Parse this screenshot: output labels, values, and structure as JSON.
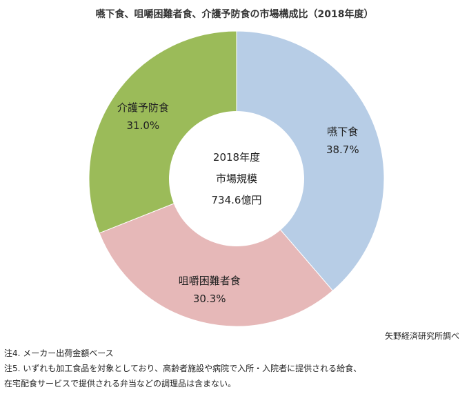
{
  "chart_data": {
    "type": "pie",
    "donut": true,
    "title": "嚥下食、咀嚼困難者食、介護予防食の市場構成比（2018年度）",
    "categories": [
      "嚥下食",
      "咀嚼困難者食",
      "介護予防食"
    ],
    "values": [
      38.7,
      30.3,
      31.0
    ],
    "value_labels": [
      "38.7%",
      "30.3%",
      "31.0%"
    ],
    "colors": [
      "#b7cde6",
      "#e6b8b8",
      "#9bbb59"
    ],
    "center_text": [
      "2018年度",
      "市場規模",
      "734.6億円"
    ]
  },
  "source": "矢野経済研究所調べ",
  "notes": [
    "注4. メーカー出荷金額ベース",
    "注5. いずれも加工食品を対象としており、高齢者施設や病院で入所・入院者に提供される給食、",
    "在宅配食サービスで提供される弁当などの調理品は含まない。"
  ]
}
